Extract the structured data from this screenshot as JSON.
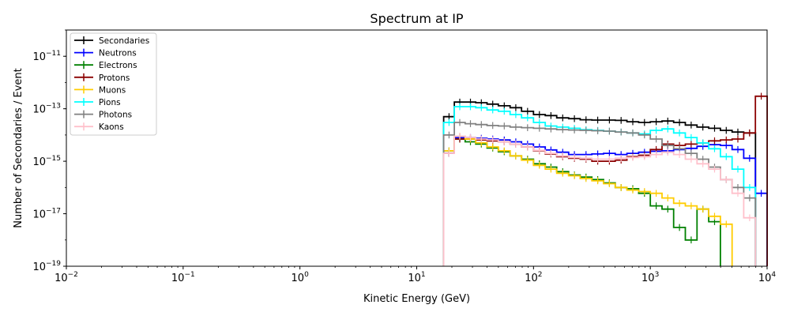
{
  "chart_data": {
    "type": "line",
    "title": "Spectrum at IP",
    "xlabel": "Kinetic Energy (GeV)",
    "ylabel": "Number of Secondaries / Event",
    "x_scale": "log",
    "y_scale": "log",
    "xlim": [
      0.01,
      10000
    ],
    "ylim": [
      1e-19,
      1e-10
    ],
    "x_ticks": [
      {
        "value": 0.01,
        "label_base": "10",
        "label_exp": "−2"
      },
      {
        "value": 0.1,
        "label_base": "10",
        "label_exp": "−1"
      },
      {
        "value": 1,
        "label_base": "10",
        "label_exp": "0"
      },
      {
        "value": 10,
        "label_base": "10",
        "label_exp": "1"
      },
      {
        "value": 100,
        "label_base": "10",
        "label_exp": "2"
      },
      {
        "value": 1000,
        "label_base": "10",
        "label_exp": "3"
      },
      {
        "value": 10000,
        "label_base": "10",
        "label_exp": "4"
      }
    ],
    "y_ticks": [
      {
        "value": 1e-19,
        "label_base": "10",
        "label_exp": "−19"
      },
      {
        "value": 1e-17,
        "label_base": "10",
        "label_exp": "−17"
      },
      {
        "value": 1e-15,
        "label_base": "10",
        "label_exp": "−15"
      },
      {
        "value": 1e-13,
        "label_base": "10",
        "label_exp": "−13"
      },
      {
        "value": 1e-11,
        "label_base": "10",
        "label_exp": "−11"
      }
    ],
    "grid": false,
    "legend_position": "top-left",
    "series": [
      {
        "name": "Secondaries",
        "color": "#000000",
        "x": [
          17,
          21,
          26,
          32,
          40,
          50,
          63,
          79,
          100,
          126,
          158,
          200,
          251,
          316,
          398,
          501,
          631,
          794,
          1000,
          1259,
          1585,
          1995,
          2512,
          3162,
          3981,
          5012,
          6310
        ],
        "y": [
          5e-14,
          1.8e-13,
          1.8e-13,
          1.7e-13,
          1.5e-13,
          1.3e-13,
          1.1e-13,
          8e-14,
          6e-14,
          5.5e-14,
          4.5e-14,
          4.2e-14,
          3.8e-14,
          3.7e-14,
          3.7e-14,
          3.6e-14,
          3.2e-14,
          3e-14,
          3.2e-14,
          3.4e-14,
          3e-14,
          2.4e-14,
          2e-14,
          1.8e-14,
          1.5e-14,
          1.3e-14,
          1.2e-14
        ]
      },
      {
        "name": "Neutrons",
        "color": "#0000ff",
        "x": [
          17,
          21,
          26,
          32,
          40,
          50,
          63,
          79,
          100,
          126,
          158,
          200,
          251,
          316,
          398,
          501,
          631,
          794,
          1000,
          1259,
          1585,
          1995,
          2512,
          3162,
          3981,
          5012,
          6310,
          7943
        ],
        "y": [
          2e-15,
          8e-15,
          8e-15,
          7.5e-15,
          7e-15,
          6.5e-15,
          5.5e-15,
          4.5e-15,
          3.5e-15,
          2.7e-15,
          2.2e-15,
          1.8e-15,
          1.8e-15,
          1.9e-15,
          2e-15,
          1.8e-15,
          2e-15,
          2.2e-15,
          2.4e-15,
          2.5e-15,
          2.8e-15,
          3.1e-15,
          3.7e-15,
          4.3e-15,
          4e-15,
          2.8e-15,
          1.3e-15,
          6e-17
        ]
      },
      {
        "name": "Electrons",
        "color": "#008000",
        "x": [
          17,
          21,
          26,
          32,
          40,
          50,
          63,
          79,
          100,
          126,
          158,
          200,
          251,
          316,
          398,
          501,
          631,
          794,
          1000,
          1259,
          1585,
          1995,
          2512,
          3162
        ],
        "y": [
          2.5e-15,
          7e-15,
          5.5e-15,
          4.5e-15,
          3.2e-15,
          2.3e-15,
          1.6e-15,
          1.2e-15,
          8e-16,
          6e-16,
          4e-16,
          3e-16,
          2.5e-16,
          2e-16,
          1.5e-16,
          1e-16,
          9e-17,
          6e-17,
          2e-17,
          1.5e-17,
          3e-18,
          1e-18,
          1.5e-17,
          5e-18
        ]
      },
      {
        "name": "Protons",
        "color": "#8b0000",
        "x": [
          17,
          21,
          26,
          32,
          40,
          50,
          63,
          79,
          100,
          126,
          158,
          200,
          251,
          316,
          398,
          501,
          631,
          794,
          1000,
          1259,
          1585,
          1995,
          2512,
          3162,
          3981,
          5012,
          6310,
          7943
        ],
        "y": [
          2e-15,
          7e-15,
          7e-15,
          6.5e-15,
          6e-15,
          5.5e-15,
          4.5e-15,
          3.5e-15,
          2.5e-15,
          1.9e-15,
          1.5e-15,
          1.3e-15,
          1.2e-15,
          1e-15,
          1e-15,
          1.1e-15,
          1.5e-15,
          1.7e-15,
          2.8e-15,
          4.5e-15,
          4e-15,
          4.5e-15,
          5e-15,
          6e-15,
          6.5e-15,
          7e-15,
          1.2e-14,
          3e-13
        ]
      },
      {
        "name": "Muons",
        "color": "#ffcc00",
        "x": [
          17,
          21,
          26,
          32,
          40,
          50,
          63,
          79,
          100,
          126,
          158,
          200,
          251,
          316,
          398,
          501,
          631,
          794,
          1000,
          1259,
          1585,
          1995,
          2512,
          3162,
          3981
        ],
        "y": [
          2.5e-15,
          9e-15,
          7e-15,
          5e-15,
          3.5e-15,
          2.5e-15,
          1.6e-15,
          1.1e-15,
          7e-16,
          5e-16,
          3.5e-16,
          2.8e-16,
          2.2e-16,
          1.8e-16,
          1.4e-16,
          1e-16,
          8e-17,
          7e-17,
          6e-17,
          4e-17,
          2.5e-17,
          2e-17,
          1.5e-17,
          8e-18,
          4e-18
        ]
      },
      {
        "name": "Pions",
        "color": "#00ffff",
        "x": [
          17,
          21,
          26,
          32,
          40,
          50,
          63,
          79,
          100,
          126,
          158,
          200,
          251,
          316,
          398,
          501,
          631,
          794,
          1000,
          1259,
          1585,
          1995,
          2512,
          3162,
          3981,
          5012,
          6310
        ],
        "y": [
          3e-14,
          1.2e-13,
          1.2e-13,
          1.1e-13,
          9e-14,
          8e-14,
          6e-14,
          4.5e-14,
          3e-14,
          2.2e-14,
          2e-14,
          1.8e-14,
          1.6e-14,
          1.5e-14,
          1.4e-14,
          1.3e-14,
          1.2e-14,
          1.1e-14,
          1.5e-14,
          1.7e-14,
          1.2e-14,
          8e-15,
          5e-15,
          3e-15,
          1.5e-15,
          5e-16,
          1e-16
        ]
      },
      {
        "name": "Photons",
        "color": "#808080",
        "x": [
          17,
          21,
          26,
          32,
          40,
          50,
          63,
          79,
          100,
          126,
          158,
          200,
          251,
          316,
          398,
          501,
          631,
          794,
          1000,
          1259,
          1585,
          1995,
          2512,
          3162,
          3981,
          5012,
          6310
        ],
        "y": [
          1e-14,
          3e-14,
          2.7e-14,
          2.5e-14,
          2.3e-14,
          2.2e-14,
          2e-14,
          1.9e-14,
          1.8e-14,
          1.7e-14,
          1.6e-14,
          1.55e-14,
          1.5e-14,
          1.45e-14,
          1.4e-14,
          1.3e-14,
          1.2e-14,
          1e-14,
          7e-15,
          4e-15,
          3e-15,
          2e-15,
          1.2e-15,
          6e-16,
          2e-16,
          1e-16,
          4e-17
        ]
      },
      {
        "name": "Kaons",
        "color": "#ffc0cb",
        "x": [
          17,
          21,
          26,
          32,
          40,
          50,
          63,
          79,
          100,
          126,
          158,
          200,
          251,
          316,
          398,
          501,
          631,
          794,
          1000,
          1259,
          1585,
          1995,
          2512,
          3162,
          3981,
          5012,
          6310
        ],
        "y": [
          2e-15,
          9e-15,
          8e-15,
          7e-15,
          6.5e-15,
          5.5e-15,
          4.5e-15,
          3.5e-15,
          2.6e-15,
          2e-15,
          1.6e-15,
          1.4e-15,
          1.3e-15,
          1.2e-15,
          1.2e-15,
          1.3e-15,
          1.4e-15,
          1.5e-15,
          1.8e-15,
          2.2e-15,
          1.8e-15,
          1.2e-15,
          8e-16,
          5e-16,
          2e-16,
          6e-17,
          7e-18
        ]
      }
    ]
  }
}
